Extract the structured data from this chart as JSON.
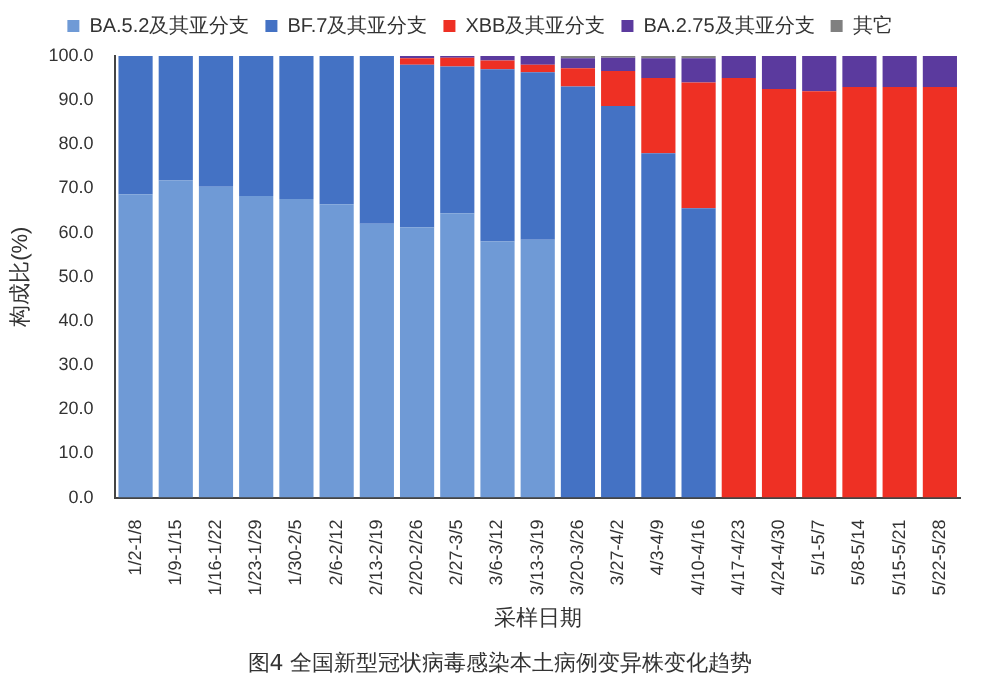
{
  "chart_data": {
    "type": "bar",
    "stacked": true,
    "xlabel": "采样日期",
    "ylabel": "构成比(%)",
    "annotations": [
      "图4 全国新型冠状病毒感染本土病例变异株变化趋势"
    ],
    "categories": [
      "1/2-1/8",
      "1/9-1/15",
      "1/16-1/22",
      "1/23-1/29",
      "1/30-2/5",
      "2/6-2/12",
      "2/13-2/19",
      "2/20-2/26",
      "2/27-3/5",
      "3/6-3/12",
      "3/13-3/19",
      "3/20-3/26",
      "3/27-4/2",
      "4/3-4/9",
      "4/10-4/16",
      "4/17-4/23",
      "4/24-4/30",
      "5/1-5/7",
      "5/8-5/14",
      "5/15-5/21",
      "5/22-5/28"
    ],
    "series": [
      {
        "name": "BA.5.2及其亚分支",
        "color": "#6f9ad6",
        "values": [
          68.7,
          71.8,
          70.4,
          68.3,
          67.6,
          66.4,
          62,
          61.2,
          64.4,
          58,
          58.4,
          null,
          null,
          null,
          null,
          0,
          0,
          0,
          0,
          0,
          0
        ]
      },
      {
        "name": "BF.7及其亚分支",
        "color": "#4472c4",
        "values": [
          31.3,
          28.2,
          29.6,
          31.7,
          32.4,
          33.6,
          38,
          36.8,
          33.2,
          39,
          37.9,
          93.1,
          88.7,
          78,
          65.5,
          0,
          0,
          0,
          0,
          0,
          0
        ]
      },
      {
        "name": "XBB及其亚分支",
        "color": "#ee3024",
        "values": [
          0,
          0,
          0,
          0,
          0,
          0,
          0,
          1.5,
          2,
          2,
          1.7,
          4.1,
          7.9,
          17,
          28.5,
          95,
          92.5,
          92,
          93,
          93,
          93
        ]
      },
      {
        "name": "BA.2.75及其亚分支",
        "color": "#5b3a9e",
        "values": [
          0,
          0,
          0,
          0,
          0,
          0,
          0,
          0.5,
          0.4,
          1,
          2,
          2.3,
          3,
          4.5,
          5.5,
          5,
          7.5,
          8,
          7,
          7,
          7
        ]
      },
      {
        "name": "其它",
        "color": "#808080",
        "values": [
          0,
          0,
          0,
          0,
          0,
          0,
          0,
          0,
          0,
          0,
          0,
          0.5,
          0.4,
          0.5,
          0.5,
          0,
          0,
          0,
          0,
          0,
          0
        ]
      }
    ],
    "ylim": [
      0,
      100
    ],
    "yticks": [
      {
        "value": 0,
        "label": "0.0"
      },
      {
        "value": 10,
        "label": "10.0"
      },
      {
        "value": 20,
        "label": "20.0"
      },
      {
        "value": 30,
        "label": "30.0"
      },
      {
        "value": 40,
        "label": "40.0"
      },
      {
        "value": 50,
        "label": "50.0"
      },
      {
        "value": 60,
        "label": "60.0"
      },
      {
        "value": 70,
        "label": "70.0"
      },
      {
        "value": 80,
        "label": "80.0"
      },
      {
        "value": 90,
        "label": "90.0"
      },
      {
        "value": 100,
        "label": "100.0"
      }
    ],
    "grid": false,
    "legend": "top"
  }
}
